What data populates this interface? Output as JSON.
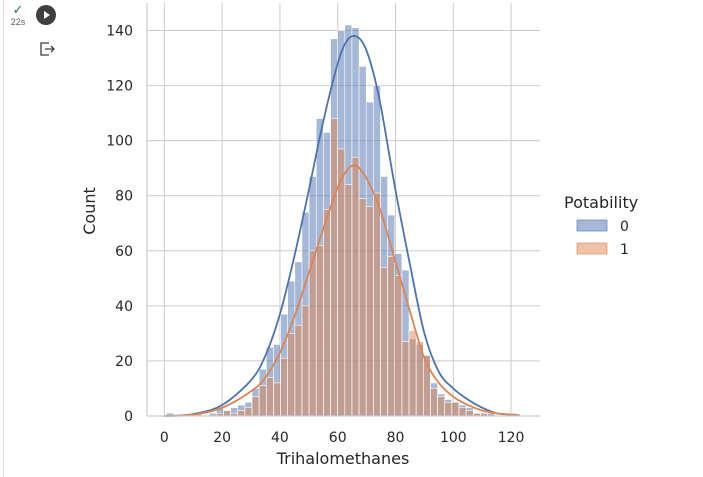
{
  "cell": {
    "status_icon": "check-icon",
    "elapsed": "22s",
    "run_icon": "play-icon",
    "output_icon": "output-toggle-icon"
  },
  "colors": {
    "series0": "#4c72b0",
    "series1": "#dd8452",
    "grid": "#cccccc"
  },
  "chart_data": {
    "type": "histogram",
    "xlabel": "Trihalomethanes",
    "ylabel": "Count",
    "xlim": [
      -6,
      130
    ],
    "ylim": [
      0,
      150
    ],
    "xticks": [
      0,
      20,
      40,
      60,
      80,
      100,
      120
    ],
    "yticks": [
      0,
      20,
      40,
      60,
      80,
      100,
      120,
      140
    ],
    "grid": true,
    "legend": {
      "title": "Potability",
      "placement": "right"
    },
    "bin_start": 0.7,
    "bin_width": 2.47,
    "series": [
      {
        "name": "0",
        "counts": [
          1,
          0,
          0,
          0,
          0,
          0,
          1,
          3,
          2,
          3,
          4,
          5,
          10,
          17,
          25,
          26,
          37,
          49,
          56,
          74,
          87,
          108,
          103,
          137,
          140,
          142,
          141,
          127,
          114,
          120,
          87,
          73,
          59,
          53,
          28,
          26,
          22,
          12,
          8,
          6,
          5,
          4,
          3,
          1,
          1,
          1,
          0,
          0,
          1
        ]
      },
      {
        "name": "1",
        "counts": [
          0,
          0,
          0,
          0,
          1,
          0,
          0,
          1,
          2,
          1,
          2,
          3,
          7,
          11,
          14,
          12,
          21,
          30,
          33,
          40,
          60,
          62,
          75,
          108,
          97,
          84,
          94,
          79,
          76,
          81,
          54,
          58,
          51,
          27,
          31,
          27,
          22,
          10,
          7,
          5,
          5,
          3,
          2,
          1,
          1,
          0,
          0,
          0,
          0
        ]
      }
    ],
    "kde": [
      {
        "name": "0",
        "x": [
          0,
          10,
          20,
          30,
          35,
          40,
          45,
          50,
          55,
          60,
          63,
          66,
          69,
          72,
          75,
          80,
          85,
          90,
          95,
          100,
          105,
          110,
          115,
          120,
          123
        ],
        "y": [
          0,
          0.7,
          4,
          13,
          22,
          37,
          58,
          82,
          107,
          128,
          136,
          138,
          135,
          126,
          112,
          82,
          55,
          30,
          16,
          10,
          6,
          3,
          1,
          0.5,
          0.2
        ]
      },
      {
        "name": "1",
        "x": [
          0,
          10,
          20,
          30,
          35,
          40,
          45,
          50,
          55,
          60,
          63,
          66,
          69,
          72,
          75,
          80,
          85,
          90,
          95,
          100,
          105,
          110,
          115,
          120,
          123
        ],
        "y": [
          0,
          0.5,
          3,
          9,
          14,
          23,
          36,
          52,
          68,
          83,
          89,
          91,
          88,
          82,
          74,
          56,
          38,
          21,
          12,
          7,
          4,
          2,
          1,
          0.5,
          0.2
        ]
      }
    ]
  }
}
